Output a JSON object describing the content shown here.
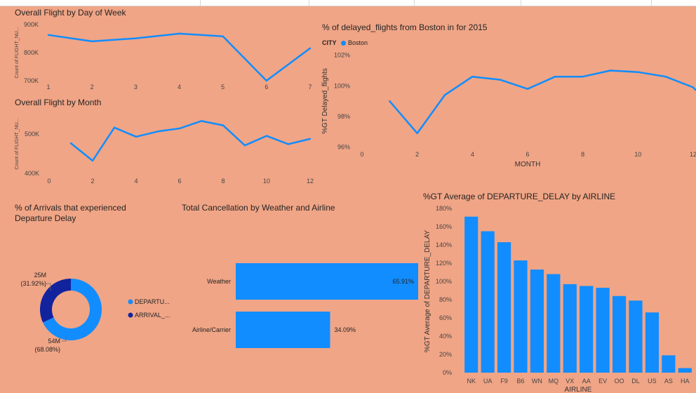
{
  "colors": {
    "primary": "#118DFF",
    "secondary": "#12239E",
    "background": "#F0A586"
  },
  "chart_data": [
    {
      "id": "dow",
      "type": "line",
      "title": "Overall Flight by Day of Week",
      "ylabel": "Count of FLIGHT_NU...",
      "x": [
        1,
        2,
        3,
        4,
        5,
        6,
        7
      ],
      "values": [
        865000,
        842000,
        853000,
        870000,
        860000,
        700000,
        817000
      ],
      "ylim": [
        700000,
        900000
      ],
      "yticks": [
        "700K",
        "800K",
        "900K"
      ],
      "xticks": [
        "1",
        "2",
        "3",
        "4",
        "5",
        "6",
        "7"
      ]
    },
    {
      "id": "month",
      "type": "line",
      "title": "Overall Flight by Month",
      "ylabel": "Count of FLIGHT_NU...",
      "x": [
        1,
        2,
        3,
        4,
        5,
        6,
        7,
        8,
        9,
        10,
        11,
        12
      ],
      "values": [
        469000,
        429000,
        505000,
        484000,
        496000,
        503000,
        520000,
        510000,
        464000,
        486000,
        467000,
        479000
      ],
      "ylim": [
        400000,
        540000
      ],
      "yticks": [
        "400K",
        "500K"
      ],
      "xticks": [
        "0",
        "2",
        "4",
        "6",
        "8",
        "10",
        "12"
      ]
    },
    {
      "id": "boston",
      "type": "line",
      "title": "% of delayed_flights from Boston in for 2015",
      "xlabel": "MONTH",
      "ylabel": "%GT Delayed_flights",
      "legend_title": "CITY",
      "series": [
        {
          "name": "Boston",
          "x": [
            1,
            2,
            3,
            4,
            5,
            6,
            7,
            8,
            9,
            10,
            11,
            12
          ],
          "values": [
            99.0,
            96.9,
            99.4,
            100.6,
            100.4,
            99.8,
            100.6,
            100.6,
            101.0,
            100.9,
            100.6,
            99.9
          ]
        }
      ],
      "xlim": [
        0,
        12
      ],
      "ylim": [
        95.7,
        102.4
      ],
      "yticks": [
        "96%",
        "98%",
        "100%",
        "102%"
      ],
      "xticks": [
        "0",
        "2",
        "4",
        "6",
        "8",
        "10",
        "12"
      ]
    },
    {
      "id": "arrivals",
      "type": "pie",
      "title": "% of Arrivals that experienced Departure Delay",
      "labels": [
        "DEPARTU...",
        "ARRIVAL_..."
      ],
      "values": [
        68.08,
        31.92
      ],
      "value_labels": [
        "54M",
        "25M"
      ],
      "percent_labels": [
        "(68.08%)",
        "(31.92%)"
      ]
    },
    {
      "id": "cancel",
      "type": "bar",
      "title": "Total Cancellation by Weather and Airline",
      "categories": [
        "Weather",
        "Airline/Carrier"
      ],
      "values": [
        65.91,
        34.09
      ],
      "data_labels": [
        "65.91%",
        "34.09%"
      ]
    },
    {
      "id": "airline",
      "type": "bar",
      "title": "%GT Average of DEPARTURE_DELAY by AIRLINE",
      "xlabel": "AIRLINE",
      "ylabel": "%GT Average of DEPARTURE_DELAY",
      "categories": [
        "NK",
        "UA",
        "F9",
        "B6",
        "WN",
        "MQ",
        "VX",
        "AA",
        "EV",
        "OO",
        "DL",
        "US",
        "AS",
        "HA"
      ],
      "values": [
        171,
        155,
        143,
        123,
        113,
        108,
        97,
        95,
        93,
        84,
        79,
        66,
        19,
        5
      ],
      "ylim": [
        0,
        180
      ],
      "yticks": [
        "0%",
        "20%",
        "40%",
        "60%",
        "80%",
        "100%",
        "120%",
        "140%",
        "160%",
        "180%"
      ]
    }
  ]
}
